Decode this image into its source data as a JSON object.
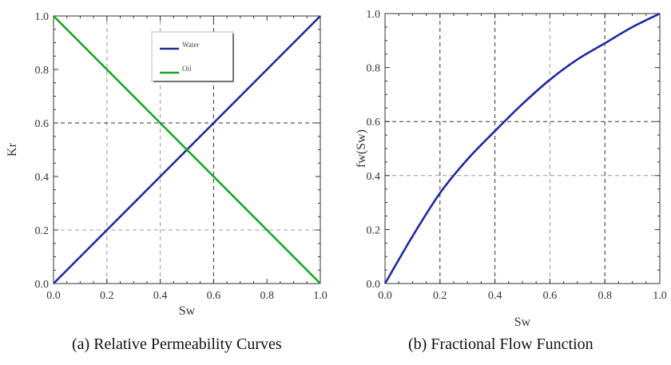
{
  "chart_data": [
    {
      "id": "a",
      "type": "line",
      "caption": "(a)  Relative Permeability Curves",
      "xlabel": "Sw",
      "ylabel": "Kr",
      "xlim": [
        0,
        1
      ],
      "ylim": [
        0,
        1
      ],
      "x_ticks": [
        0,
        0.2,
        0.4,
        0.6,
        0.8,
        1
      ],
      "x_tick_labels": [
        "0.0",
        "0.2",
        "0.4",
        "0.6",
        "0.8",
        "1.0"
      ],
      "y_ticks": [
        0,
        0.2,
        0.4,
        0.6,
        0.8,
        1
      ],
      "y_tick_labels": [
        "0.0",
        "0.2",
        "0.4",
        "0.6",
        "0.8",
        "1.0"
      ],
      "grid_x": [
        {
          "value": 0.2,
          "shade": "light"
        },
        {
          "value": 0.4,
          "shade": "light"
        },
        {
          "value": 0.6,
          "shade": "dark"
        }
      ],
      "grid_y": [
        {
          "value": 0.2,
          "shade": "light"
        },
        {
          "value": 0.6,
          "shade": "dark"
        }
      ],
      "legend": {
        "placement": "top-center"
      },
      "series": [
        {
          "name": "Water",
          "color": "#1f2a9c",
          "x": [
            0,
            0.2,
            0.4,
            0.6,
            0.8,
            1.0
          ],
          "y": [
            0,
            0.2,
            0.4,
            0.6,
            0.8,
            1.0
          ]
        },
        {
          "name": "Oil",
          "color": "#1ea31e",
          "x": [
            0,
            0.2,
            0.4,
            0.6,
            0.8,
            1.0
          ],
          "y": [
            1.0,
            0.8,
            0.6,
            0.4,
            0.2,
            0
          ]
        }
      ]
    },
    {
      "id": "b",
      "type": "line",
      "caption": "(b)  Fractional Flow Function",
      "xlabel": "Sw",
      "ylabel": "fw(Sw)",
      "xlim": [
        0,
        1
      ],
      "ylim": [
        0,
        1
      ],
      "x_ticks": [
        0,
        0.2,
        0.4,
        0.6,
        0.8,
        1
      ],
      "x_tick_labels": [
        "0.0",
        "0.2",
        "0.4",
        "0.6",
        "0.8",
        "1.0"
      ],
      "y_ticks": [
        0,
        0.2,
        0.4,
        0.6,
        0.8,
        1
      ],
      "y_tick_labels": [
        "0.0",
        "0.2",
        "0.4",
        "0.6",
        "0.8",
        "1.0"
      ],
      "grid_x": [
        {
          "value": 0.2,
          "shade": "dark"
        },
        {
          "value": 0.4,
          "shade": "dark"
        },
        {
          "value": 0.6,
          "shade": "light"
        },
        {
          "value": 0.8,
          "shade": "dark"
        }
      ],
      "grid_y": [
        {
          "value": 0.4,
          "shade": "light"
        },
        {
          "value": 0.6,
          "shade": "dark"
        }
      ],
      "series": [
        {
          "name": "",
          "color": "#1f2a9c",
          "x": [
            0,
            0.1,
            0.2,
            0.3,
            0.4,
            0.5,
            0.6,
            0.7,
            0.8,
            0.9,
            1.0
          ],
          "y": [
            0,
            0.175,
            0.335,
            0.46,
            0.565,
            0.665,
            0.755,
            0.83,
            0.89,
            0.95,
            1.0
          ]
        }
      ]
    }
  ]
}
